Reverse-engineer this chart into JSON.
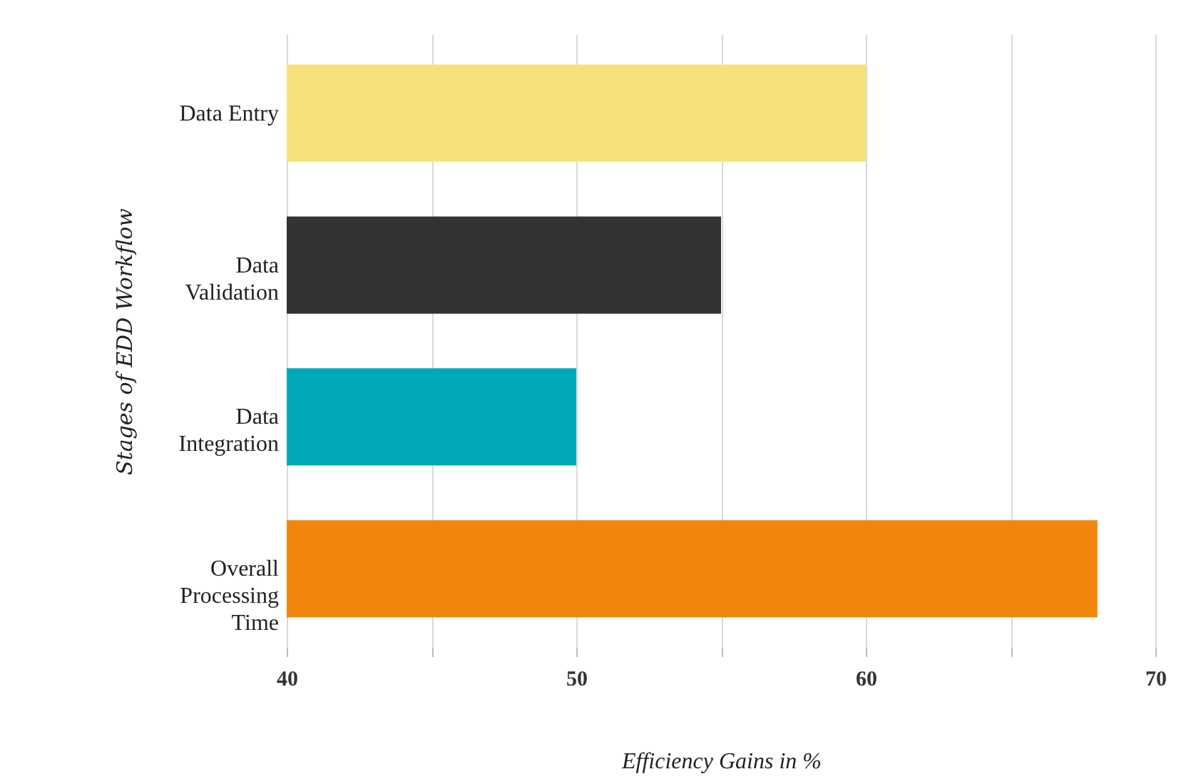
{
  "chart_data": {
    "type": "bar",
    "orientation": "horizontal",
    "xlabel": "Efficiency Gains in %",
    "ylabel": "Stages of EDD Workflow",
    "categories": [
      "Data Entry",
      "Data Validation",
      "Data Integration",
      "Overall Processing Time"
    ],
    "values": [
      60,
      55,
      50,
      68
    ],
    "colors": [
      "#f8e17a",
      "#333333",
      "#00a9ba",
      "#f0870c"
    ],
    "xlim": [
      40,
      70
    ],
    "xticks": [
      40,
      {
        "value": 45,
        "label": null
      },
      50,
      {
        "value": 55,
        "label": null
      },
      60,
      {
        "value": 65,
        "label": null
      },
      70
    ],
    "grid": "x"
  }
}
